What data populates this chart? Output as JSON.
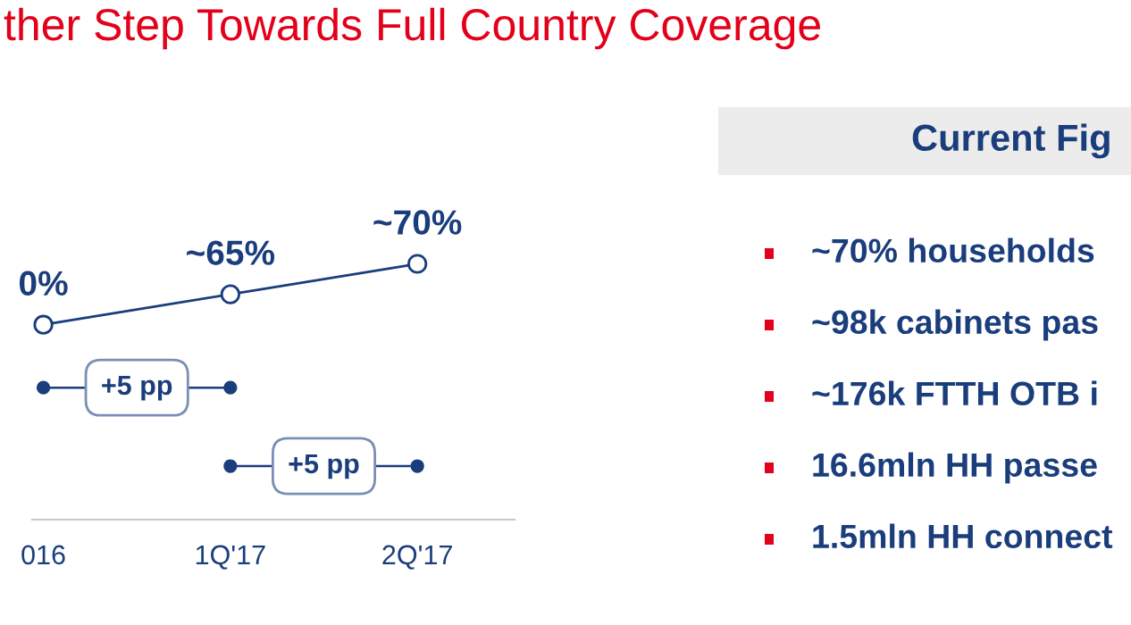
{
  "chart_data": [
    {
      "type": "line",
      "title": "ther Step Towards Full Country Coverage",
      "categories": [
        "016",
        "1Q'17",
        "2Q'17"
      ],
      "series": [
        {
          "color": "#1a3d7c",
          "values": [
            60,
            65,
            70
          ],
          "value_labels": [
            null,
            "~65%",
            "~70%"
          ]
        }
      ],
      "marker": "circle",
      "line_style": "solid",
      "annotations": [
        {
          "text": "0%",
          "x": "016",
          "y": 60
        },
        "+5 pp",
        "+5 pp"
      ]
    },
    {
      "type": "other",
      "title": "Current Fig",
      "annotations": [
        "~70% households",
        "~98k cabinets pas",
        "~176k FTTH OTB i",
        "16.6mln HH passe",
        "1.5mln HH connect"
      ]
    }
  ]
}
